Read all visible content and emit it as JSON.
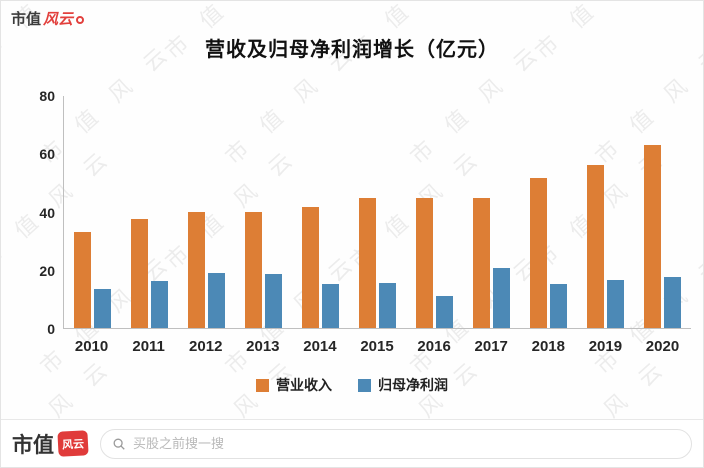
{
  "brand": {
    "prefix": "市值",
    "suffix": "风云"
  },
  "watermark": {
    "text": "市值风云"
  },
  "chart_data": {
    "type": "bar",
    "title": "营收及归母净利润增长（亿元）",
    "categories": [
      "2010",
      "2011",
      "2012",
      "2013",
      "2014",
      "2015",
      "2016",
      "2017",
      "2018",
      "2019",
      "2020"
    ],
    "series": [
      {
        "name": "营业收入",
        "color": "#DD7E35",
        "values": [
          33,
          37.5,
          40,
          40,
          41.5,
          44.5,
          44.5,
          44.5,
          51.5,
          56,
          63
        ]
      },
      {
        "name": "归母净利润",
        "color": "#4C89B6",
        "values": [
          13.5,
          16,
          19,
          18.5,
          15,
          15.5,
          11,
          20.5,
          15,
          16.5,
          17.5
        ]
      }
    ],
    "xlabel": "",
    "ylabel": "",
    "ylim": [
      0,
      80
    ],
    "yticks": [
      0,
      20,
      40,
      60,
      80
    ],
    "grid": false,
    "legend_position": "bottom"
  },
  "footer": {
    "search_placeholder": "买股之前搜一搜"
  }
}
